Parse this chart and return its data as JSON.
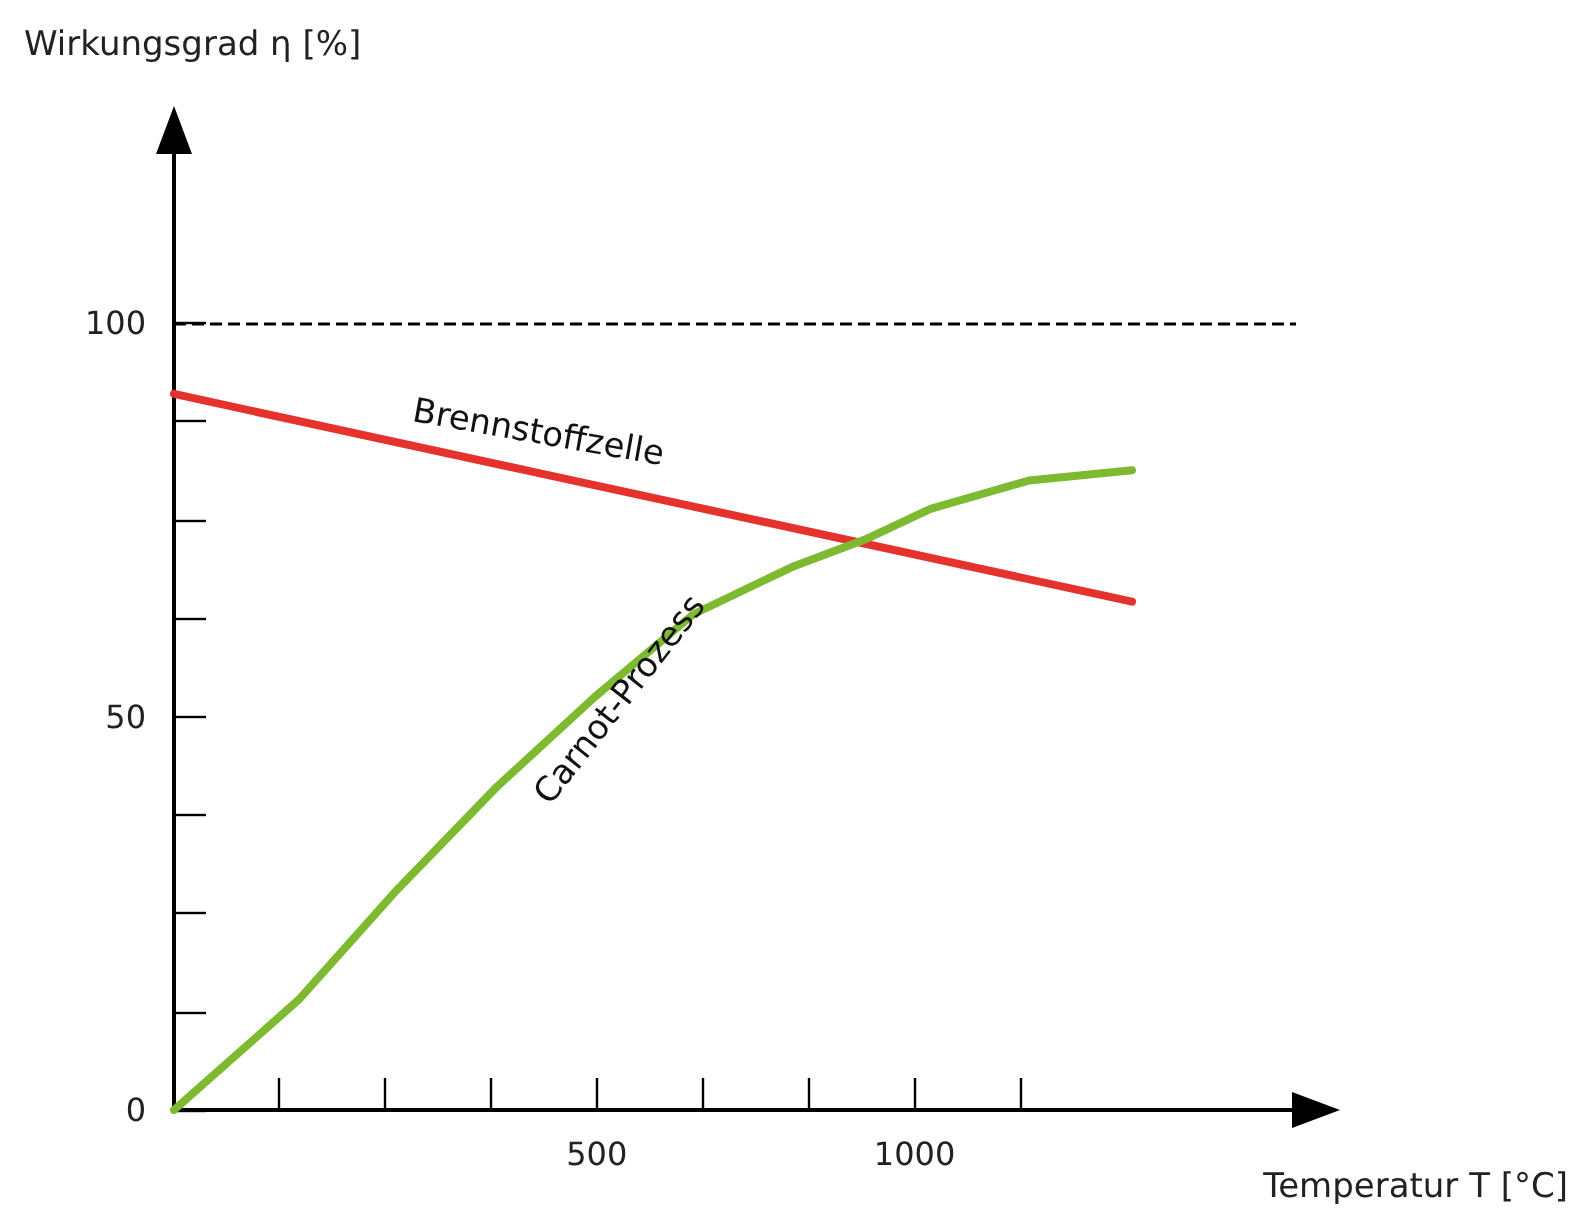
{
  "chart_data": {
    "type": "line",
    "xlabel": "Temperatur T [°C]",
    "ylabel": "Wirkungsgrad η [%]",
    "xlim": [
      -165,
      1600
    ],
    "ylim": [
      0,
      122
    ],
    "xticks": [
      {
        "value": 0,
        "label": null
      },
      {
        "value": 167,
        "label": null
      },
      {
        "value": 333,
        "label": null
      },
      500,
      {
        "value": 667,
        "label": null
      },
      {
        "value": 833,
        "label": null
      },
      1000,
      {
        "value": 1167,
        "label": null
      }
    ],
    "yticks": [
      0,
      {
        "value": 12.5,
        "label": null
      },
      {
        "value": 25,
        "label": null
      },
      {
        "value": 37.5,
        "label": null
      },
      50,
      {
        "value": 62.5,
        "label": null
      },
      {
        "value": 75,
        "label": null
      },
      {
        "value": 87.5,
        "label": null
      },
      100
    ],
    "series": [
      {
        "name": "Brennstoffzelle",
        "color": "#e5322d",
        "x": [
          -165,
          400,
          1342
        ],
        "values": [
          91,
          81.1,
          64.6
        ]
      },
      {
        "name": "Carnot-Prozess",
        "color": "#7dba2f",
        "x": [
          -165,
          31,
          186,
          342,
          497,
          652,
          807,
          922,
          1025,
          1180,
          1342
        ],
        "values": [
          0,
          14,
          28,
          41,
          52.5,
          63,
          69,
          72.5,
          76.4,
          80,
          81.3
        ]
      }
    ],
    "ref_lines": [
      {
        "axis": "y",
        "value": 100,
        "color": "#000000",
        "line_style": "dashed"
      }
    ],
    "marker": "none",
    "line_style": "solid",
    "grid": false,
    "legend": false
  }
}
